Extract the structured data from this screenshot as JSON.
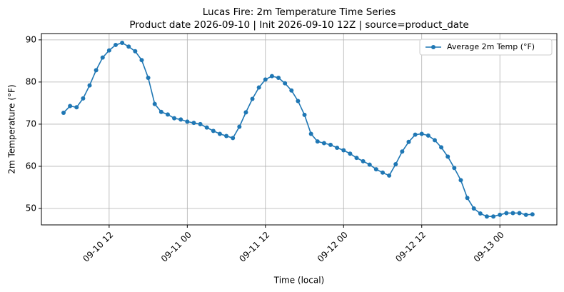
{
  "chart_data": {
    "type": "line",
    "title": "Lucas Fire: 2m Temperature Time Series",
    "subtitle": "Product date 2026-09-10 | Init 2026-09-10 12Z | source=product_date",
    "x_label": "Time (local)",
    "y_label": "2m Temperature (°F)",
    "x": [
      "09-10 05",
      "09-10 06",
      "09-10 07",
      "09-10 08",
      "09-10 09",
      "09-10 10",
      "09-10 11",
      "09-10 12",
      "09-10 13",
      "09-10 14",
      "09-10 15",
      "09-10 16",
      "09-10 17",
      "09-10 18",
      "09-10 19",
      "09-10 20",
      "09-10 21",
      "09-10 22",
      "09-10 23",
      "09-11 00",
      "09-11 01",
      "09-11 02",
      "09-11 03",
      "09-11 04",
      "09-11 05",
      "09-11 06",
      "09-11 07",
      "09-11 08",
      "09-11 09",
      "09-11 10",
      "09-11 11",
      "09-11 12",
      "09-11 13",
      "09-11 14",
      "09-11 15",
      "09-11 16",
      "09-11 17",
      "09-11 18",
      "09-11 19",
      "09-11 20",
      "09-11 21",
      "09-11 22",
      "09-11 23",
      "09-12 00",
      "09-12 01",
      "09-12 02",
      "09-12 03",
      "09-12 04",
      "09-12 05",
      "09-12 06",
      "09-12 07",
      "09-12 08",
      "09-12 09",
      "09-12 10",
      "09-12 11",
      "09-12 12",
      "09-12 13",
      "09-12 14",
      "09-12 15",
      "09-12 16",
      "09-12 17",
      "09-12 18",
      "09-12 19",
      "09-12 20",
      "09-12 21",
      "09-12 22",
      "09-12 23",
      "09-13 00",
      "09-13 01",
      "09-13 02",
      "09-13 03",
      "09-13 04",
      "09-13 05"
    ],
    "series": [
      {
        "name": "Average 2m Temp (°F)",
        "color": "#1f77b4",
        "values": [
          72.7,
          74.3,
          74.0,
          76.1,
          79.2,
          82.8,
          85.8,
          87.5,
          88.8,
          89.3,
          88.4,
          87.3,
          85.2,
          81.0,
          74.8,
          72.9,
          72.3,
          71.4,
          71.1,
          70.6,
          70.3,
          70.0,
          69.2,
          68.4,
          67.7,
          67.2,
          66.7,
          69.4,
          72.8,
          76.0,
          78.7,
          80.6,
          81.4,
          81.0,
          79.7,
          78.0,
          75.5,
          72.2,
          67.7,
          65.9,
          65.5,
          65.1,
          64.4,
          63.8,
          63.0,
          62.0,
          61.2,
          60.4,
          59.3,
          58.5,
          57.8,
          60.5,
          63.5,
          65.8,
          67.5,
          67.7,
          67.3,
          66.2,
          64.5,
          62.3,
          59.6,
          56.7,
          52.5,
          50.0,
          48.8,
          48.1,
          48.1,
          48.5,
          48.9,
          48.9,
          48.9,
          48.5,
          48.6
        ]
      }
    ],
    "xlim": [
      "09-10 01:36",
      "09-13 08:45"
    ],
    "xticks": [
      "09-10 12",
      "09-11 00",
      "09-11 12",
      "09-12 00",
      "09-12 12",
      "09-13 00"
    ],
    "ylim": [
      46.1,
      91.5
    ],
    "yticks": [
      50,
      60,
      70,
      80,
      90
    ],
    "grid": true,
    "legend": "upper-right"
  }
}
